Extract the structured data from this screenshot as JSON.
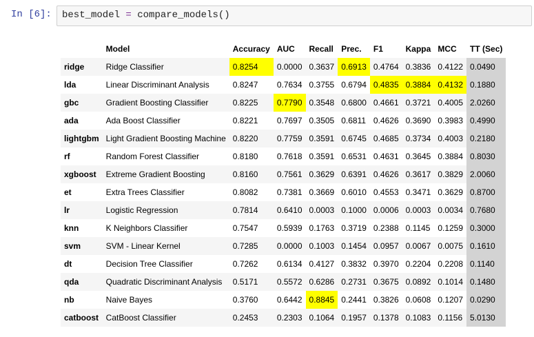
{
  "cell": {
    "prompt": "In [6]:",
    "code_var": "best_model",
    "code_op": " = ",
    "code_call": "compare_models()"
  },
  "table": {
    "headers": [
      "",
      "Model",
      "Accuracy",
      "AUC",
      "Recall",
      "Prec.",
      "F1",
      "Kappa",
      "MCC",
      "TT (Sec)"
    ],
    "rows": [
      {
        "id": "ridge",
        "model": "Ridge Classifier",
        "vals": [
          "0.8254",
          "0.0000",
          "0.3637",
          "0.6913",
          "0.4764",
          "0.3836",
          "0.4122",
          "0.0490"
        ],
        "hl": [
          0,
          3
        ]
      },
      {
        "id": "lda",
        "model": "Linear Discriminant Analysis",
        "vals": [
          "0.8247",
          "0.7634",
          "0.3755",
          "0.6794",
          "0.4835",
          "0.3884",
          "0.4132",
          "0.1880"
        ],
        "hl": [
          4,
          5,
          6
        ]
      },
      {
        "id": "gbc",
        "model": "Gradient Boosting Classifier",
        "vals": [
          "0.8225",
          "0.7790",
          "0.3548",
          "0.6800",
          "0.4661",
          "0.3721",
          "0.4005",
          "2.0260"
        ],
        "hl": [
          1
        ]
      },
      {
        "id": "ada",
        "model": "Ada Boost Classifier",
        "vals": [
          "0.8221",
          "0.7697",
          "0.3505",
          "0.6811",
          "0.4626",
          "0.3690",
          "0.3983",
          "0.4990"
        ],
        "hl": []
      },
      {
        "id": "lightgbm",
        "model": "Light Gradient Boosting Machine",
        "vals": [
          "0.8220",
          "0.7759",
          "0.3591",
          "0.6745",
          "0.4685",
          "0.3734",
          "0.4003",
          "0.2180"
        ],
        "hl": []
      },
      {
        "id": "rf",
        "model": "Random Forest Classifier",
        "vals": [
          "0.8180",
          "0.7618",
          "0.3591",
          "0.6531",
          "0.4631",
          "0.3645",
          "0.3884",
          "0.8030"
        ],
        "hl": []
      },
      {
        "id": "xgboost",
        "model": "Extreme Gradient Boosting",
        "vals": [
          "0.8160",
          "0.7561",
          "0.3629",
          "0.6391",
          "0.4626",
          "0.3617",
          "0.3829",
          "2.0060"
        ],
        "hl": []
      },
      {
        "id": "et",
        "model": "Extra Trees Classifier",
        "vals": [
          "0.8082",
          "0.7381",
          "0.3669",
          "0.6010",
          "0.4553",
          "0.3471",
          "0.3629",
          "0.8700"
        ],
        "hl": []
      },
      {
        "id": "lr",
        "model": "Logistic Regression",
        "vals": [
          "0.7814",
          "0.6410",
          "0.0003",
          "0.1000",
          "0.0006",
          "0.0003",
          "0.0034",
          "0.7680"
        ],
        "hl": []
      },
      {
        "id": "knn",
        "model": "K Neighbors Classifier",
        "vals": [
          "0.7547",
          "0.5939",
          "0.1763",
          "0.3719",
          "0.2388",
          "0.1145",
          "0.1259",
          "0.3000"
        ],
        "hl": []
      },
      {
        "id": "svm",
        "model": "SVM - Linear Kernel",
        "vals": [
          "0.7285",
          "0.0000",
          "0.1003",
          "0.1454",
          "0.0957",
          "0.0067",
          "0.0075",
          "0.1610"
        ],
        "hl": []
      },
      {
        "id": "dt",
        "model": "Decision Tree Classifier",
        "vals": [
          "0.7262",
          "0.6134",
          "0.4127",
          "0.3832",
          "0.3970",
          "0.2204",
          "0.2208",
          "0.1140"
        ],
        "hl": []
      },
      {
        "id": "qda",
        "model": "Quadratic Discriminant Analysis",
        "vals": [
          "0.5171",
          "0.5572",
          "0.6286",
          "0.2731",
          "0.3675",
          "0.0892",
          "0.1014",
          "0.1480"
        ],
        "hl": []
      },
      {
        "id": "nb",
        "model": "Naive Bayes",
        "vals": [
          "0.3760",
          "0.6442",
          "0.8845",
          "0.2441",
          "0.3826",
          "0.0608",
          "0.1207",
          "0.0290"
        ],
        "hl": [
          2
        ]
      },
      {
        "id": "catboost",
        "model": "CatBoost Classifier",
        "vals": [
          "0.2453",
          "0.2303",
          "0.1064",
          "0.1957",
          "0.1378",
          "0.1083",
          "0.1156",
          "5.0130"
        ],
        "hl": []
      }
    ]
  },
  "colors": {
    "highlight": "#ffff00",
    "tt_column": "#d3d3d3",
    "prompt": "#303f9f"
  }
}
